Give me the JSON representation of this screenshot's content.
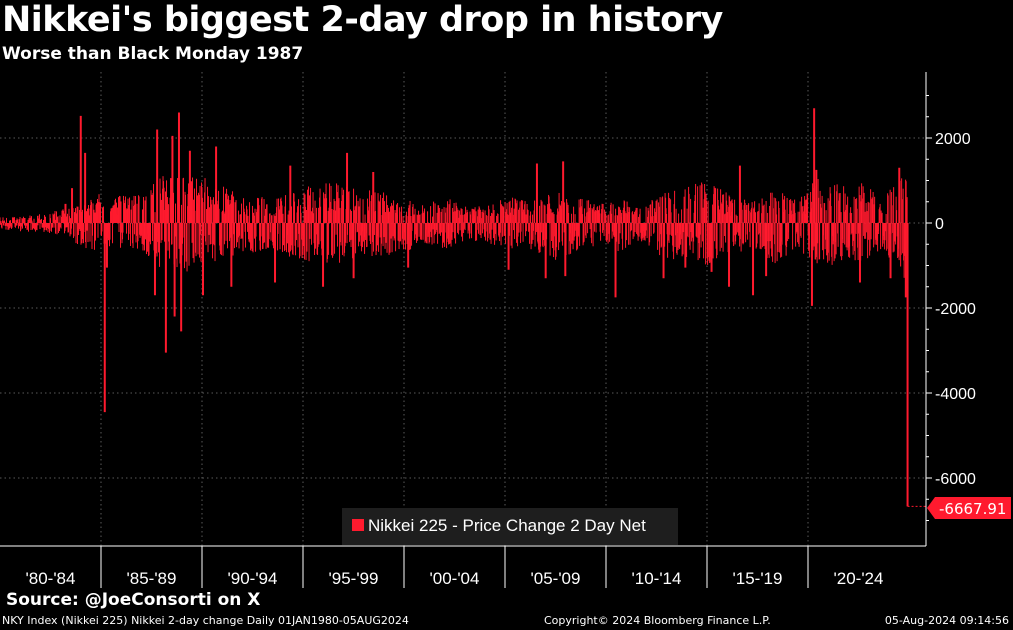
{
  "header": {
    "title": "Nikkei's biggest 2-day drop in history",
    "subtitle": "Worse than Black Monday 1987"
  },
  "footer": {
    "source": "Source: @JoeConsorti on X",
    "index_info": "NKY Index (Nikkei 225) Nikkei 2-day change  Daily 01JAN1980-05AUG2024",
    "copyright": "Copyright© 2024 Bloomberg Finance L.P.",
    "timestamp": "05-Aug-2024 09:14:56"
  },
  "colors": {
    "background": "#000000",
    "series": "#ff1a2e",
    "grid": "#5a5a5a",
    "text": "#ffffff",
    "legend_bg": "#1e1e1e"
  },
  "chart_data": {
    "type": "bar",
    "title": "Nikkei's biggest 2-day drop in history",
    "subtitle": "Worse than Black Monday 1987",
    "xlabel": "",
    "ylabel": "",
    "x_range": [
      1983.0,
      2024.6
    ],
    "ylim": [
      -7500,
      3500
    ],
    "y_ticks": [
      2000,
      0,
      -2000,
      -4000,
      -6000
    ],
    "y_tick_labels": [
      "2000",
      "0",
      "-2000",
      "-4000",
      "-6000"
    ],
    "x_tick_labels": [
      "'80-'84",
      "'85-'89",
      "'90-'94",
      "'95-'99",
      "'00-'04",
      "'05-'09",
      "'10-'14",
      "'15-'19",
      "'20-'24"
    ],
    "grid": true,
    "legend_position": "bottom-center",
    "series": [
      {
        "name": "Nikkei 225 - Price Change 2 Day Net",
        "color": "#ff1a2e",
        "last_value": -6667.91,
        "last_value_label": "-6667.91",
        "envelope": {
          "x": [
            1983.0,
            1984.0,
            1985.0,
            1986.0,
            1987.5,
            1988.5,
            1989.5,
            1990.5,
            1991.5,
            1992.5,
            1993.5,
            1994.5,
            1995.5,
            1996.5,
            1997.5,
            1998.5,
            1999.5,
            2000.5,
            2001.5,
            2002.5,
            2003.5,
            2004.5,
            2005.5,
            2006.5,
            2007.5,
            2008.5,
            2009.5,
            2010.5,
            2011.5,
            2012.5,
            2013.5,
            2014.5,
            2015.5,
            2016.5,
            2017.5,
            2018.5,
            2019.5,
            2020.5,
            2021.5,
            2022.5,
            2023.5,
            2024.4
          ],
          "high": [
            150,
            200,
            220,
            350,
            700,
            650,
            700,
            1200,
            1150,
            1050,
            800,
            650,
            600,
            800,
            900,
            1000,
            800,
            750,
            550,
            450,
            600,
            350,
            500,
            600,
            550,
            750,
            650,
            450,
            550,
            400,
            800,
            850,
            1050,
            650,
            500,
            800,
            550,
            1100,
            900,
            950,
            700,
            1200
          ],
          "low": [
            -150,
            -200,
            -220,
            -350,
            -750,
            -600,
            -650,
            -1250,
            -1200,
            -1000,
            -800,
            -700,
            -600,
            -850,
            -950,
            -1050,
            -750,
            -800,
            -700,
            -550,
            -600,
            -400,
            -500,
            -600,
            -650,
            -950,
            -650,
            -500,
            -700,
            -450,
            -900,
            -800,
            -1050,
            -900,
            -550,
            -1000,
            -600,
            -1050,
            -950,
            -900,
            -650,
            -1300
          ]
        },
        "spikes": [
          {
            "x": 1986.0,
            "value": 450
          },
          {
            "x": 1986.3,
            "value": 820
          },
          {
            "x": 1986.7,
            "value": 2520
          },
          {
            "x": 1986.9,
            "value": 1650
          },
          {
            "x": 1987.8,
            "value": -4450
          },
          {
            "x": 1987.9,
            "value": -1050
          },
          {
            "x": 1990.1,
            "value": -1700
          },
          {
            "x": 1990.2,
            "value": 2200
          },
          {
            "x": 1990.6,
            "value": -3050
          },
          {
            "x": 1990.9,
            "value": 2050
          },
          {
            "x": 1991.0,
            "value": -2200
          },
          {
            "x": 1991.2,
            "value": 2600
          },
          {
            "x": 1991.3,
            "value": -2550
          },
          {
            "x": 1991.7,
            "value": 1700
          },
          {
            "x": 1992.3,
            "value": -1700
          },
          {
            "x": 1992.9,
            "value": 1800
          },
          {
            "x": 1993.6,
            "value": -1500
          },
          {
            "x": 1995.6,
            "value": -1400
          },
          {
            "x": 1996.3,
            "value": 1350
          },
          {
            "x": 1997.8,
            "value": -1500
          },
          {
            "x": 1998.9,
            "value": 1650
          },
          {
            "x": 1999.2,
            "value": -1300
          },
          {
            "x": 2000.1,
            "value": 1200
          },
          {
            "x": 2001.7,
            "value": -1050
          },
          {
            "x": 2006.3,
            "value": -1100
          },
          {
            "x": 2007.6,
            "value": 1400
          },
          {
            "x": 2008.0,
            "value": -1300
          },
          {
            "x": 2008.8,
            "value": 1450
          },
          {
            "x": 2008.9,
            "value": -1250
          },
          {
            "x": 2011.2,
            "value": -1750
          },
          {
            "x": 2013.4,
            "value": -1300
          },
          {
            "x": 2014.4,
            "value": -1050
          },
          {
            "x": 2015.6,
            "value": -1150
          },
          {
            "x": 2016.4,
            "value": -1500
          },
          {
            "x": 2016.9,
            "value": 1350
          },
          {
            "x": 2017.5,
            "value": -1700
          },
          {
            "x": 2018.1,
            "value": -1250
          },
          {
            "x": 2020.2,
            "value": -1950
          },
          {
            "x": 2020.3,
            "value": 2700
          },
          {
            "x": 2020.4,
            "value": 1250
          },
          {
            "x": 2022.4,
            "value": -1400
          },
          {
            "x": 2023.8,
            "value": -1300
          },
          {
            "x": 2024.2,
            "value": 1300
          },
          {
            "x": 2024.5,
            "value": -1750
          },
          {
            "x": 2024.58,
            "value": -6667.91
          }
        ]
      }
    ]
  }
}
